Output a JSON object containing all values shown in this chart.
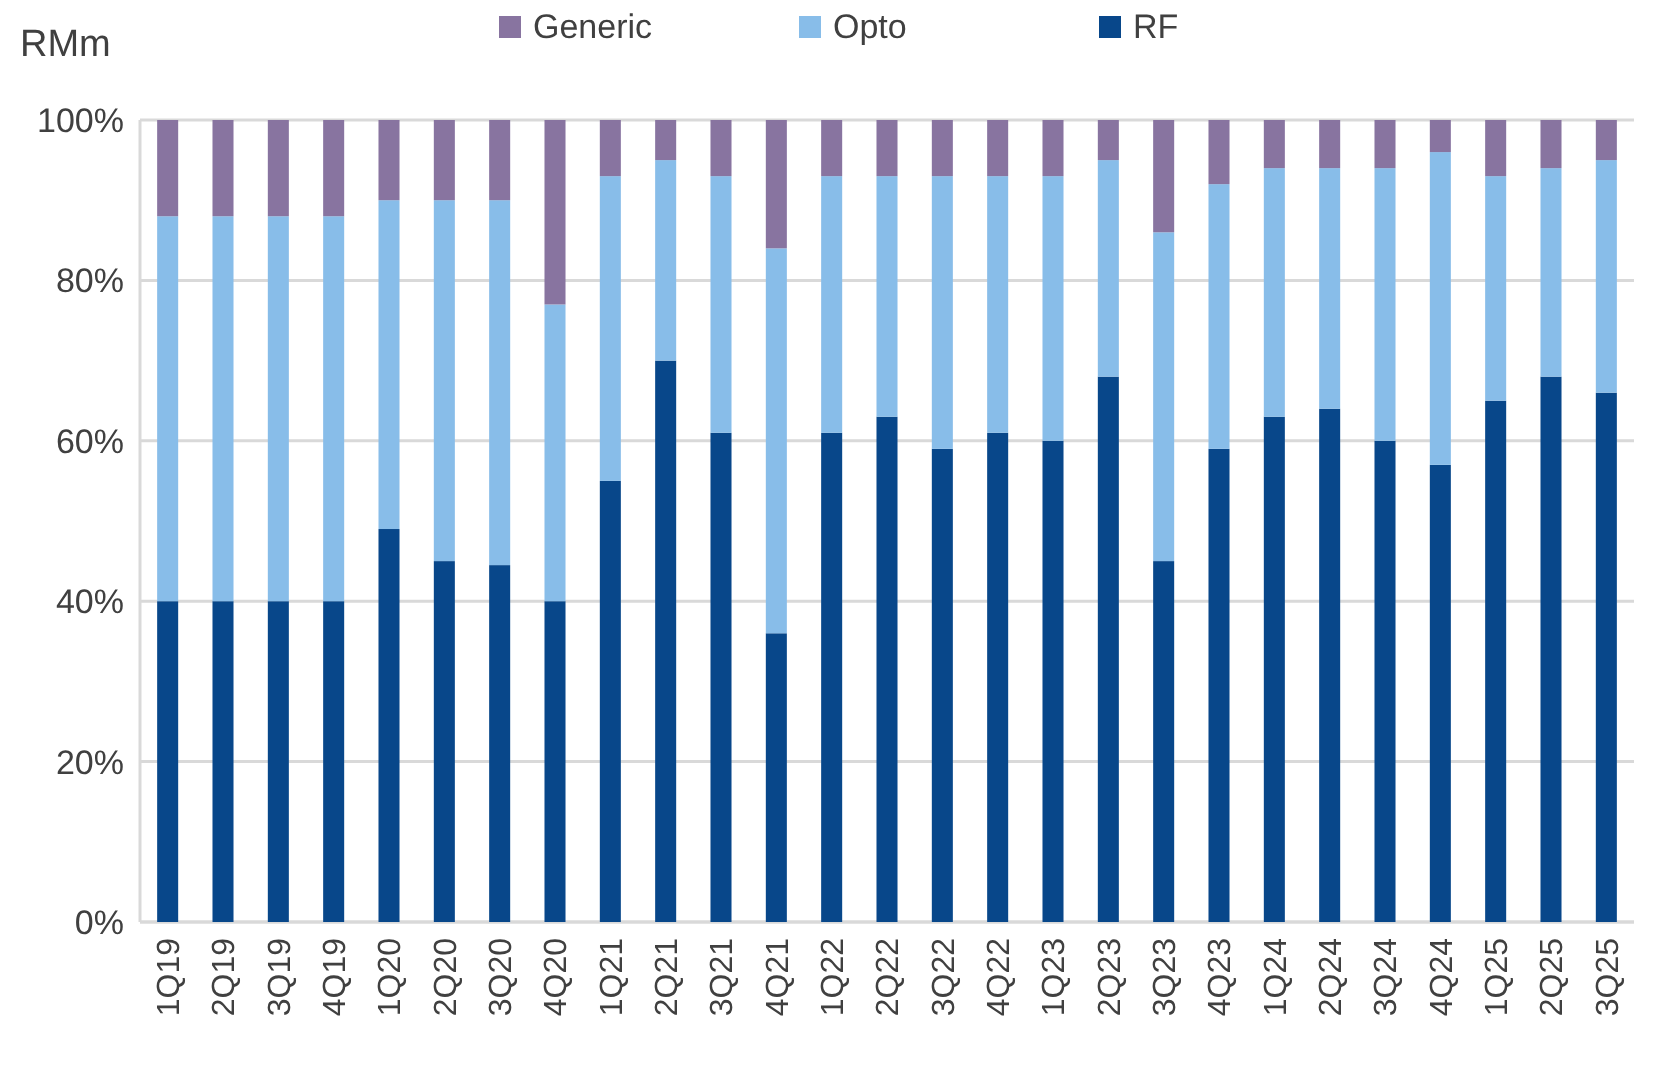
{
  "chart_data": {
    "type": "bar",
    "stacked": true,
    "ylabel": "RMm",
    "categories": [
      "1Q19",
      "2Q19",
      "3Q19",
      "4Q19",
      "1Q20",
      "2Q20",
      "3Q20",
      "4Q20",
      "1Q21",
      "2Q21",
      "3Q21",
      "4Q21",
      "1Q22",
      "2Q22",
      "3Q22",
      "4Q22",
      "1Q23",
      "2Q23",
      "3Q23",
      "4Q23",
      "1Q24",
      "2Q24",
      "3Q24",
      "4Q24",
      "1Q25",
      "2Q25",
      "3Q25"
    ],
    "series": [
      {
        "name": "RF",
        "color": "#08478a",
        "values": [
          40,
          40,
          40,
          40,
          49,
          45,
          44.5,
          40,
          55,
          70,
          61,
          36,
          61,
          63,
          59,
          61,
          60,
          68,
          45,
          59,
          63,
          64,
          60,
          57,
          65,
          68,
          66
        ]
      },
      {
        "name": "Opto",
        "color": "#88bde9",
        "values": [
          48,
          48,
          48,
          48,
          41,
          45,
          45.5,
          37,
          38,
          25,
          32,
          48,
          32,
          30,
          34,
          32,
          33,
          27,
          41,
          33,
          31,
          30,
          34,
          39,
          28,
          26,
          29
        ]
      },
      {
        "name": "Generic",
        "color": "#8874a0",
        "values": [
          12,
          12,
          12,
          12,
          10,
          10,
          10,
          23,
          7,
          5,
          7,
          16,
          7,
          7,
          7,
          7,
          7,
          5,
          14,
          8,
          6,
          6,
          6,
          4,
          7,
          6,
          5
        ]
      }
    ],
    "ylim": [
      0,
      100
    ],
    "yticks": [
      {
        "value": 0,
        "label": "0%"
      },
      {
        "value": 20,
        "label": "20%"
      },
      {
        "value": 40,
        "label": "40%"
      },
      {
        "value": 60,
        "label": "60%"
      },
      {
        "value": 80,
        "label": "80%"
      },
      {
        "value": 100,
        "label": "100%"
      }
    ],
    "grid": "y",
    "legend": "top"
  }
}
